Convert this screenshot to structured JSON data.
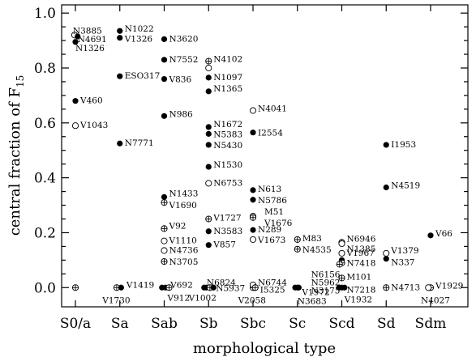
{
  "chart_data": {
    "type": "scatter",
    "xlabel": "morphological type",
    "ylabel_prefix": "central fraction of F",
    "ylabel_sub": "15",
    "categories": [
      "S0/a",
      "Sa",
      "Sab",
      "Sb",
      "Sbc",
      "Sc",
      "Scd",
      "Sd",
      "Sdm"
    ],
    "ylim": [
      -0.07,
      1.03
    ],
    "yticks": [
      0.0,
      0.2,
      0.4,
      0.6,
      0.8,
      1.0
    ],
    "ytick_labels": [
      "0.0",
      "0.2",
      "0.4",
      "0.6",
      "0.8",
      "1.0"
    ],
    "points": [
      {
        "type": "S0/a",
        "dx": -0.02,
        "y": 0.92,
        "marker": "open",
        "label": "N3885",
        "ldx": -2,
        "ldy": -6,
        "anchor": "start"
      },
      {
        "type": "S0/a",
        "dx": 0.05,
        "y": 0.915,
        "marker": "filled",
        "label": "N4691",
        "ldx": 0,
        "ldy": 3,
        "anchor": "start"
      },
      {
        "type": "S0/a",
        "dx": 0.0,
        "y": 0.895,
        "marker": "filled",
        "label": "N1326",
        "ldx": 0,
        "ldy": 7,
        "anchor": "start"
      },
      {
        "type": "S0/a",
        "dx": 0.0,
        "y": 0.68,
        "marker": "filled",
        "label": "V460",
        "ldx": 6,
        "ldy": -1,
        "anchor": "start"
      },
      {
        "type": "S0/a",
        "dx": 0.0,
        "y": 0.59,
        "marker": "open",
        "label": "V1043",
        "ldx": 6,
        "ldy": -1,
        "anchor": "start"
      },
      {
        "type": "S0/a",
        "dx": 0.0,
        "y": 0.0,
        "marker": "cross",
        "label": "",
        "ldx": 0,
        "ldy": 0,
        "anchor": "start"
      },
      {
        "type": "Sa",
        "dx": 0.0,
        "y": 0.935,
        "marker": "filled",
        "label": "N1022",
        "ldx": 6,
        "ldy": -3,
        "anchor": "start"
      },
      {
        "type": "Sa",
        "dx": 0.0,
        "y": 0.91,
        "marker": "filled",
        "label": "V1326",
        "ldx": 6,
        "ldy": 1,
        "anchor": "start"
      },
      {
        "type": "Sa",
        "dx": 0.0,
        "y": 0.77,
        "marker": "filled",
        "label": "ESO317",
        "ldx": 6,
        "ldy": -1,
        "anchor": "start"
      },
      {
        "type": "Sa",
        "dx": 0.0,
        "y": 0.525,
        "marker": "filled",
        "label": "N7771",
        "ldx": 6,
        "ldy": -1,
        "anchor": "start"
      },
      {
        "type": "Sa",
        "dx": -0.07,
        "y": 0.0,
        "marker": "cross",
        "label": "V1419",
        "ldx": 12,
        "ldy": -4,
        "anchor": "start"
      },
      {
        "type": "Sa",
        "dx": 0.03,
        "y": 0.0,
        "marker": "filled",
        "label": "V1730",
        "ldx": -6,
        "ldy": 15,
        "anchor": "middle"
      },
      {
        "type": "Sab",
        "dx": 0.0,
        "y": 0.905,
        "marker": "filled",
        "label": "N3620",
        "ldx": 6,
        "ldy": -1,
        "anchor": "start"
      },
      {
        "type": "Sab",
        "dx": 0.0,
        "y": 0.83,
        "marker": "filled",
        "label": "N7552",
        "ldx": 6,
        "ldy": -1,
        "anchor": "start"
      },
      {
        "type": "Sab",
        "dx": 0.0,
        "y": 0.76,
        "marker": "filled",
        "label": "V836",
        "ldx": 6,
        "ldy": 0,
        "anchor": "start"
      },
      {
        "type": "Sab",
        "dx": 0.0,
        "y": 0.625,
        "marker": "filled",
        "label": "N986",
        "ldx": 6,
        "ldy": -3,
        "anchor": "start"
      },
      {
        "type": "Sab",
        "dx": 0.0,
        "y": 0.33,
        "marker": "filled",
        "label": "N1433",
        "ldx": 6,
        "ldy": -5,
        "anchor": "start"
      },
      {
        "type": "Sab",
        "dx": 0.0,
        "y": 0.31,
        "marker": "cross",
        "label": "V1690",
        "ldx": 6,
        "ldy": 3,
        "anchor": "start"
      },
      {
        "type": "Sab",
        "dx": 0.0,
        "y": 0.215,
        "marker": "cross",
        "label": "V92",
        "ldx": 6,
        "ldy": -4,
        "anchor": "start"
      },
      {
        "type": "Sab",
        "dx": 0.0,
        "y": 0.17,
        "marker": "open",
        "label": "V1110",
        "ldx": 6,
        "ldy": -1,
        "anchor": "start"
      },
      {
        "type": "Sab",
        "dx": 0.0,
        "y": 0.135,
        "marker": "open",
        "label": "N4736",
        "ldx": 6,
        "ldy": -1,
        "anchor": "start"
      },
      {
        "type": "Sab",
        "dx": 0.0,
        "y": 0.095,
        "marker": "cross",
        "label": "N3705",
        "ldx": 6,
        "ldy": 0,
        "anchor": "start"
      },
      {
        "type": "Sab",
        "dx": -0.05,
        "y": 0.0,
        "marker": "filled",
        "label": "",
        "ldx": 0,
        "ldy": 0,
        "anchor": "start"
      },
      {
        "type": "Sab",
        "dx": 0.03,
        "y": 0.0,
        "marker": "filled",
        "label": "V692",
        "ldx": 6,
        "ldy": -4,
        "anchor": "start"
      },
      {
        "type": "Sab",
        "dx": 0.11,
        "y": 0.0,
        "marker": "cross",
        "label": "V912",
        "ldx": -2,
        "ldy": 12,
        "anchor": "start"
      },
      {
        "type": "Sb",
        "dx": 0.0,
        "y": 0.825,
        "marker": "cross",
        "label": "N4102",
        "ldx": 6,
        "ldy": -3,
        "anchor": "start"
      },
      {
        "type": "Sb",
        "dx": 0.0,
        "y": 0.8,
        "marker": "open",
        "label": "",
        "ldx": 0,
        "ldy": 0,
        "anchor": "start"
      },
      {
        "type": "Sb",
        "dx": 0.0,
        "y": 0.765,
        "marker": "filled",
        "label": "N1097",
        "ldx": 6,
        "ldy": -1,
        "anchor": "start"
      },
      {
        "type": "Sb",
        "dx": 0.0,
        "y": 0.715,
        "marker": "filled",
        "label": "N1365",
        "ldx": 6,
        "ldy": -4,
        "anchor": "start"
      },
      {
        "type": "Sb",
        "dx": 0.0,
        "y": 0.585,
        "marker": "filled",
        "label": "N1672",
        "ldx": 6,
        "ldy": -4,
        "anchor": "start"
      },
      {
        "type": "Sb",
        "dx": 0.0,
        "y": 0.56,
        "marker": "filled",
        "label": "N5383",
        "ldx": 6,
        "ldy": 0,
        "anchor": "start"
      },
      {
        "type": "Sb",
        "dx": 0.0,
        "y": 0.52,
        "marker": "filled",
        "label": "N5430",
        "ldx": 6,
        "ldy": 0,
        "anchor": "start"
      },
      {
        "type": "Sb",
        "dx": 0.0,
        "y": 0.44,
        "marker": "filled",
        "label": "N1530",
        "ldx": 6,
        "ldy": -3,
        "anchor": "start"
      },
      {
        "type": "Sb",
        "dx": 0.0,
        "y": 0.38,
        "marker": "open",
        "label": "N6753",
        "ldx": 6,
        "ldy": -1,
        "anchor": "start"
      },
      {
        "type": "Sb",
        "dx": 0.0,
        "y": 0.25,
        "marker": "cross",
        "label": "V1727",
        "ldx": 6,
        "ldy": -2,
        "anchor": "start"
      },
      {
        "type": "Sb",
        "dx": 0.0,
        "y": 0.205,
        "marker": "filled",
        "label": "N3583",
        "ldx": 6,
        "ldy": -1,
        "anchor": "start"
      },
      {
        "type": "Sb",
        "dx": 0.0,
        "y": 0.155,
        "marker": "filled",
        "label": "V857",
        "ldx": 6,
        "ldy": -1,
        "anchor": "start"
      },
      {
        "type": "Sb",
        "dx": -0.05,
        "y": 0.0,
        "marker": "filled",
        "label": "",
        "ldx": 0,
        "ldy": 0,
        "anchor": "start"
      },
      {
        "type": "Sb",
        "dx": 0.03,
        "y": 0.0,
        "marker": "cross",
        "label": "N6824",
        "ldx": -4,
        "ldy": -7,
        "anchor": "start"
      },
      {
        "type": "Sb",
        "dx": 0.11,
        "y": 0.0,
        "marker": "filled",
        "label": "N5937",
        "ldx": 3,
        "ldy": 0,
        "anchor": "start"
      },
      {
        "type": "Sb",
        "dx": -0.1,
        "y": 0.0,
        "marker": "filled",
        "label": "V1002",
        "ldx": -2,
        "ldy": 12,
        "anchor": "middle"
      },
      {
        "type": "Sbc",
        "dx": 0.0,
        "y": 0.645,
        "marker": "open",
        "label": "N4041",
        "ldx": 6,
        "ldy": -3,
        "anchor": "start"
      },
      {
        "type": "Sbc",
        "dx": 0.0,
        "y": 0.565,
        "marker": "filled",
        "label": "I2554",
        "ldx": 6,
        "ldy": 0,
        "anchor": "start"
      },
      {
        "type": "Sbc",
        "dx": 0.0,
        "y": 0.355,
        "marker": "filled",
        "label": "N613",
        "ldx": 6,
        "ldy": -2,
        "anchor": "start"
      },
      {
        "type": "Sbc",
        "dx": 0.0,
        "y": 0.32,
        "marker": "filled",
        "label": "N5786",
        "ldx": 6,
        "ldy": 0,
        "anchor": "start"
      },
      {
        "type": "Sbc",
        "dx": 0.0,
        "y": 0.26,
        "marker": "open",
        "label": "M51",
        "ldx": 14,
        "ldy": -6,
        "anchor": "start"
      },
      {
        "type": "Sbc",
        "dx": 0.0,
        "y": 0.255,
        "marker": "cross",
        "label": "V1676",
        "ldx": 14,
        "ldy": 6,
        "anchor": "start"
      },
      {
        "type": "Sbc",
        "dx": 0.0,
        "y": 0.21,
        "marker": "filled",
        "label": "N289",
        "ldx": 6,
        "ldy": -1,
        "anchor": "start"
      },
      {
        "type": "Sbc",
        "dx": 0.0,
        "y": 0.175,
        "marker": "open",
        "label": "V1673",
        "ldx": 6,
        "ldy": 0,
        "anchor": "start"
      },
      {
        "type": "Sbc",
        "dx": 0.0,
        "y": 0.0,
        "marker": "cross",
        "label": "N6744",
        "ldx": 6,
        "ldy": -7,
        "anchor": "start"
      },
      {
        "type": "Sbc",
        "dx": 0.0,
        "y": 0.01,
        "marker": "open",
        "label": "",
        "ldx": 0,
        "ldy": 0,
        "anchor": "start"
      },
      {
        "type": "Sbc",
        "dx": 0.05,
        "y": 0.0,
        "marker": "cross",
        "label": "I5325",
        "ldx": 6,
        "ldy": 2,
        "anchor": "start"
      },
      {
        "type": "Sbc",
        "dx": 0.05,
        "y": 0.0,
        "marker": "cross",
        "label": "V2058",
        "ldx": -4,
        "ldy": 15,
        "anchor": "middle"
      },
      {
        "type": "Sc",
        "dx": 0.0,
        "y": 0.175,
        "marker": "cross",
        "label": "M83",
        "ldx": 6,
        "ldy": -2,
        "anchor": "start"
      },
      {
        "type": "Sc",
        "dx": 0.0,
        "y": 0.14,
        "marker": "cross",
        "label": "N4535",
        "ldx": 6,
        "ldy": 0,
        "anchor": "start"
      },
      {
        "type": "Sc",
        "dx": -0.05,
        "y": 0.0,
        "marker": "filled",
        "label": "",
        "ldx": 0,
        "ldy": 0,
        "anchor": "start"
      },
      {
        "type": "Sc",
        "dx": 0.03,
        "y": 0.0,
        "marker": "filled",
        "label": "V1972",
        "ldx": 4,
        "ldy": 5,
        "anchor": "start"
      },
      {
        "type": "Sc",
        "dx": 0.0,
        "y": 0.0,
        "marker": "filled",
        "label": "N3683",
        "ldx": 0,
        "ldy": 16,
        "anchor": "start"
      },
      {
        "type": "Scd",
        "dx": 0.0,
        "y": 0.165,
        "marker": "cross",
        "label": "N6946",
        "ldx": 6,
        "ldy": -5,
        "anchor": "start"
      },
      {
        "type": "Scd",
        "dx": 0.0,
        "y": 0.16,
        "marker": "open",
        "label": "N1385",
        "ldx": 6,
        "ldy": 6,
        "anchor": "start"
      },
      {
        "type": "Scd",
        "dx": 0.0,
        "y": 0.125,
        "marker": "open",
        "label": "V1967",
        "ldx": 6,
        "ldy": -1,
        "anchor": "start"
      },
      {
        "type": "Scd",
        "dx": 0.0,
        "y": 0.1,
        "marker": "filled",
        "label": "",
        "ldx": 0,
        "ldy": 0,
        "anchor": "start"
      },
      {
        "type": "Scd",
        "dx": 0.0,
        "y": 0.09,
        "marker": "cross",
        "label": "N7418",
        "ldx": 6,
        "ldy": 0,
        "anchor": "start"
      },
      {
        "type": "Scd",
        "dx": -0.05,
        "y": 0.085,
        "marker": "cross",
        "label": "",
        "ldx": 0,
        "ldy": 0,
        "anchor": "start"
      },
      {
        "type": "Scd",
        "dx": 0.0,
        "y": 0.05,
        "marker": "none",
        "label": "N6156",
        "ldx": -2,
        "ldy": 0,
        "anchor": "end"
      },
      {
        "type": "Scd",
        "dx": 0.0,
        "y": 0.02,
        "marker": "none",
        "label": "N5962",
        "ldx": -2,
        "ldy": 0,
        "anchor": "end"
      },
      {
        "type": "Scd",
        "dx": 0.0,
        "y": 0.005,
        "marker": "none",
        "label": "N3175",
        "ldx": -2,
        "ldy": 5,
        "anchor": "end"
      },
      {
        "type": "Scd",
        "dx": 0.0,
        "y": 0.035,
        "marker": "cross",
        "label": "M101",
        "ldx": 6,
        "ldy": -2,
        "anchor": "start"
      },
      {
        "type": "Scd",
        "dx": 0.0,
        "y": 0.0,
        "marker": "filled",
        "label": "N7218",
        "ldx": 6,
        "ldy": 2,
        "anchor": "start"
      },
      {
        "type": "Scd",
        "dx": -0.06,
        "y": 0.0,
        "marker": "filled",
        "label": "",
        "ldx": 0,
        "ldy": 0,
        "anchor": "start"
      },
      {
        "type": "Scd",
        "dx": 0.06,
        "y": 0.0,
        "marker": "filled",
        "label": "V1932",
        "ldx": 0,
        "ldy": 14,
        "anchor": "start"
      },
      {
        "type": "Sd",
        "dx": 0.0,
        "y": 0.52,
        "marker": "filled",
        "label": "I1953",
        "ldx": 6,
        "ldy": -1,
        "anchor": "start"
      },
      {
        "type": "Sd",
        "dx": 0.0,
        "y": 0.365,
        "marker": "filled",
        "label": "N4519",
        "ldx": 6,
        "ldy": -3,
        "anchor": "start"
      },
      {
        "type": "Sd",
        "dx": 0.0,
        "y": 0.125,
        "marker": "open",
        "label": "V1379",
        "ldx": 6,
        "ldy": -4,
        "anchor": "start"
      },
      {
        "type": "Sd",
        "dx": 0.0,
        "y": 0.105,
        "marker": "filled",
        "label": "N337",
        "ldx": 6,
        "ldy": 4,
        "anchor": "start"
      },
      {
        "type": "Sd",
        "dx": 0.0,
        "y": 0.0,
        "marker": "cross",
        "label": "N4713",
        "ldx": 6,
        "ldy": -1,
        "anchor": "start"
      },
      {
        "type": "Sdm",
        "dx": 0.0,
        "y": 0.19,
        "marker": "filled",
        "label": "V66",
        "ldx": 6,
        "ldy": -3,
        "anchor": "start"
      },
      {
        "type": "Sdm",
        "dx": 0.0,
        "y": 0.0,
        "marker": "cross",
        "label": "V1929",
        "ldx": 6,
        "ldy": -3,
        "anchor": "start"
      },
      {
        "type": "Sdm",
        "dx": -0.05,
        "y": 0.0,
        "marker": "open",
        "label": "",
        "ldx": 0,
        "ldy": 0,
        "anchor": "start"
      },
      {
        "type": "Sdm",
        "dx": 0.0,
        "y": 0.0,
        "marker": "none",
        "label": "N4027",
        "ldx": -12,
        "ldy": 15,
        "anchor": "start"
      }
    ]
  }
}
